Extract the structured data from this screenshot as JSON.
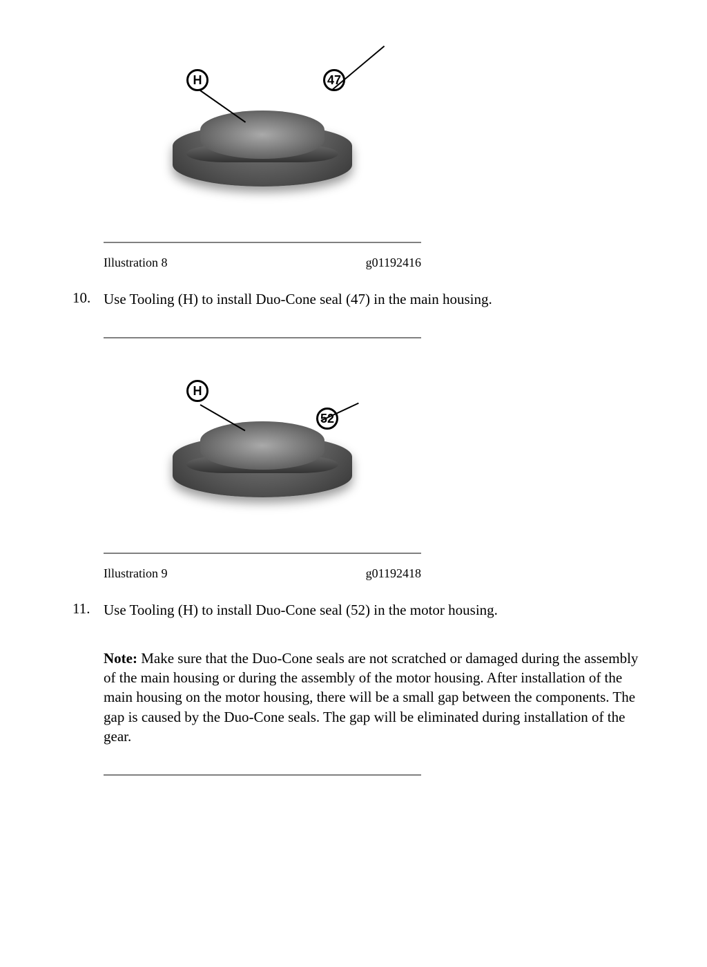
{
  "figure1": {
    "illustration_label": "Illustration 8",
    "image_id": "g01192416",
    "callout_h": "H",
    "callout_num": "47"
  },
  "step10": {
    "number": "10.",
    "text": "Use Tooling (H) to install Duo-Cone seal (47) in the main housing."
  },
  "figure2": {
    "illustration_label": "Illustration 9",
    "image_id": "g01192418",
    "callout_h": "H",
    "callout_num": "52"
  },
  "step11": {
    "number": "11.",
    "text": "Use Tooling (H) to install Duo-Cone seal (52) in the motor housing."
  },
  "note": {
    "label": "Note:",
    "text": " Make sure that the Duo-Cone seals are not scratched or damaged during the assembly of the main housing or during the assembly of the motor housing. After installation of the main housing on the motor housing, there will be a small gap between the components. The gap is caused by the Duo-Cone seals. The gap will be eliminated during installation of the gear."
  }
}
